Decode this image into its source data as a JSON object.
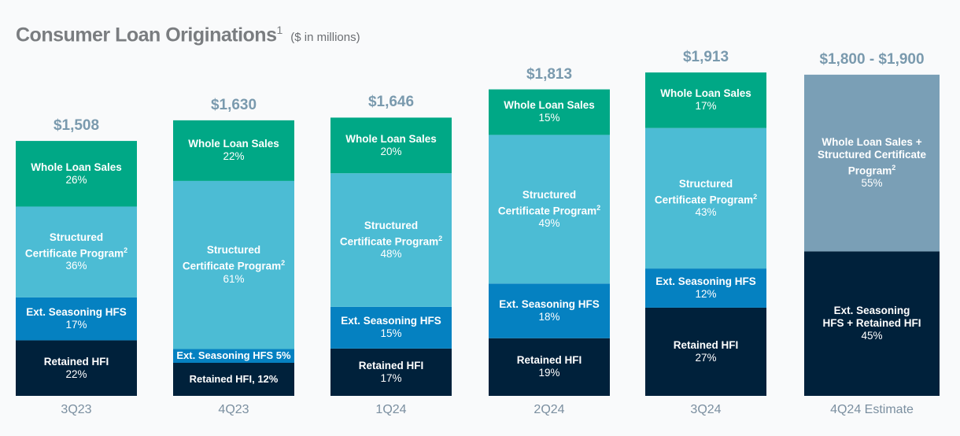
{
  "title": {
    "main": "Consumer Loan Originations",
    "footnote": "1",
    "subtitle": "($ in millions)"
  },
  "colors": {
    "whole_loan_sales": "#00a886",
    "structured_certificate": "#4cbcd4",
    "ext_seasoning": "#0581c1",
    "retained_hfi": "#00213b",
    "estimate_top": "#7a9fb6",
    "estimate_bottom": "#00213b"
  },
  "chart_data": {
    "type": "bar",
    "stacked": true,
    "categories": [
      "3Q23",
      "4Q23",
      "1Q24",
      "2Q24",
      "3Q24",
      "4Q24 Estimate"
    ],
    "totals": [
      "$1,508",
      "$1,630",
      "$1,646",
      "$1,813",
      "$1,913",
      "$1,800 - $1,900"
    ],
    "total_values": [
      1508,
      1630,
      1646,
      1813,
      1913,
      1900
    ],
    "bars": [
      {
        "segments": [
          {
            "key": "retained_hfi",
            "name": "Retained HFI",
            "pct_label": "22%",
            "pct": 22
          },
          {
            "key": "ext_seasoning",
            "name": "Ext. Seasoning HFS",
            "pct_label": "17%",
            "pct": 17
          },
          {
            "key": "structured_certificate",
            "name": "Structured",
            "name2": "Certificate Program",
            "sup": "2",
            "pct_label": "36%",
            "pct": 36
          },
          {
            "key": "whole_loan_sales",
            "name": "Whole Loan Sales",
            "pct_label": "26%",
            "pct": 26
          }
        ]
      },
      {
        "segments": [
          {
            "key": "retained_hfi",
            "name": "Retained HFI, 12%",
            "pct_label": "",
            "pct": 12,
            "inline": true
          },
          {
            "key": "ext_seasoning",
            "name": "Ext. Seasoning HFS 5%",
            "pct_label": "",
            "pct": 5,
            "inline": true
          },
          {
            "key": "structured_certificate",
            "name": "Structured",
            "name2": "Certificate Program",
            "sup": "2",
            "pct_label": "61%",
            "pct": 61
          },
          {
            "key": "whole_loan_sales",
            "name": "Whole Loan Sales",
            "pct_label": "22%",
            "pct": 22
          }
        ]
      },
      {
        "segments": [
          {
            "key": "retained_hfi",
            "name": "Retained HFI",
            "pct_label": "17%",
            "pct": 17
          },
          {
            "key": "ext_seasoning",
            "name": "Ext. Seasoning HFS",
            "pct_label": "15%",
            "pct": 15
          },
          {
            "key": "structured_certificate",
            "name": "Structured",
            "name2": "Certificate Program",
            "sup": "2",
            "pct_label": "48%",
            "pct": 48
          },
          {
            "key": "whole_loan_sales",
            "name": "Whole Loan Sales",
            "pct_label": "20%",
            "pct": 20
          }
        ]
      },
      {
        "segments": [
          {
            "key": "retained_hfi",
            "name": "Retained HFI",
            "pct_label": "19%",
            "pct": 19
          },
          {
            "key": "ext_seasoning",
            "name": "Ext. Seasoning HFS",
            "pct_label": "18%",
            "pct": 18
          },
          {
            "key": "structured_certificate",
            "name": "Structured",
            "name2": "Certificate Program",
            "sup": "2",
            "pct_label": "49%",
            "pct": 49
          },
          {
            "key": "whole_loan_sales",
            "name": "Whole Loan Sales",
            "pct_label": "15%",
            "pct": 15
          }
        ]
      },
      {
        "segments": [
          {
            "key": "retained_hfi",
            "name": "Retained HFI",
            "pct_label": "27%",
            "pct": 27
          },
          {
            "key": "ext_seasoning",
            "name": "Ext. Seasoning HFS",
            "pct_label": "12%",
            "pct": 12
          },
          {
            "key": "structured_certificate",
            "name": "Structured",
            "name2": "Certificate Program",
            "sup": "2",
            "pct_label": "43%",
            "pct": 43
          },
          {
            "key": "whole_loan_sales",
            "name": "Whole Loan Sales",
            "pct_label": "17%",
            "pct": 17
          }
        ]
      },
      {
        "segments": [
          {
            "key": "estimate_bottom",
            "name": "Ext. Seasoning",
            "name2": "HFS + Retained HFI",
            "pct_label": "45%",
            "pct": 45
          },
          {
            "key": "estimate_top",
            "name": "Whole Loan Sales +",
            "name2": "Structured Certificate",
            "name3": "Program",
            "sup": "2",
            "pct_label": "55%",
            "pct": 55
          }
        ]
      }
    ],
    "legend": "none",
    "grid": false
  }
}
